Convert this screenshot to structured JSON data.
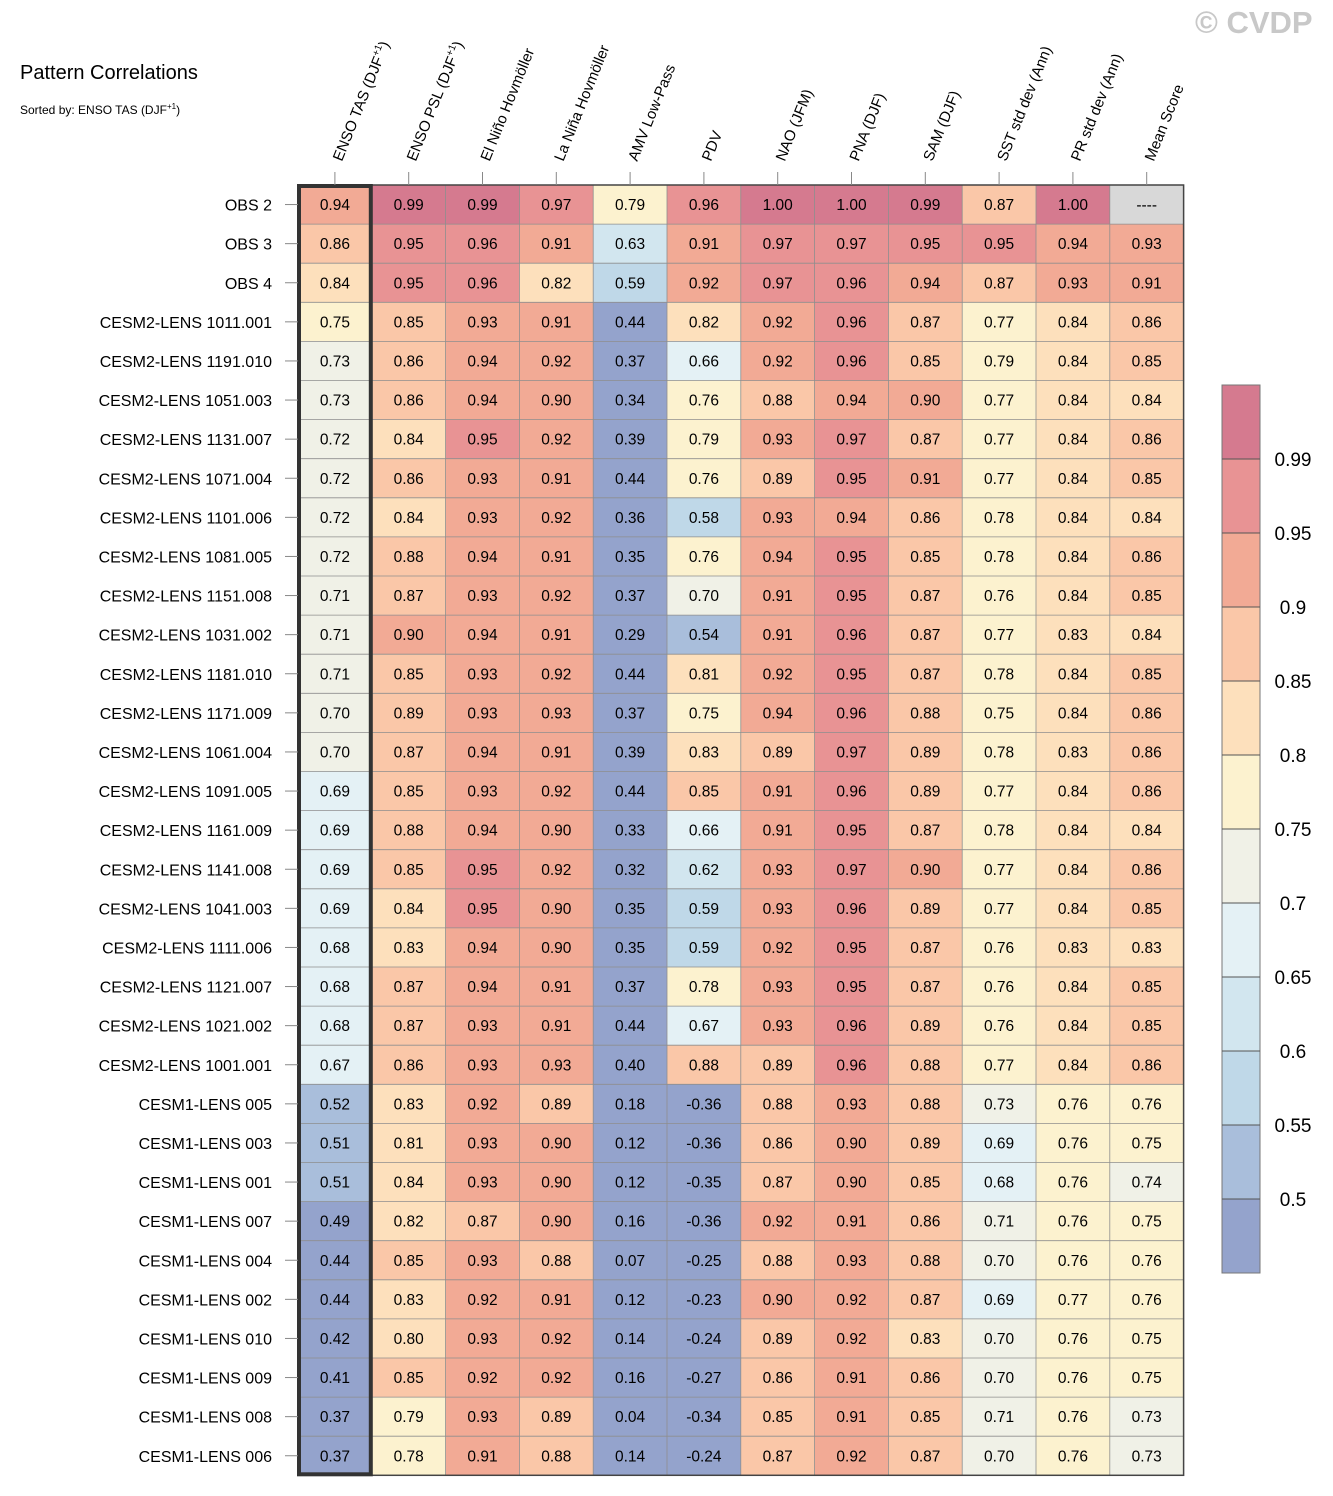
{
  "title": "Pattern Correlations",
  "subtitle_prefix": "Sorted by: ENSO TAS (DJF",
  "subtitle_sup": "+1",
  "subtitle_suffix": ")",
  "watermark": "© CVDP",
  "chart_data": {
    "type": "heatmap",
    "columns": [
      {
        "label": "ENSO TAS (DJF",
        "sup": "+1",
        "suffix": ")"
      },
      {
        "label": "ENSO PSL (DJF",
        "sup": "+1",
        "suffix": ")"
      },
      {
        "label": "El Niño Hovmöller",
        "sup": "",
        "suffix": ""
      },
      {
        "label": "La Niña Hovmöller",
        "sup": "",
        "suffix": ""
      },
      {
        "label": "AMV Low-Pass",
        "sup": "",
        "suffix": ""
      },
      {
        "label": "PDV",
        "sup": "",
        "suffix": ""
      },
      {
        "label": "NAO (JFM)",
        "sup": "",
        "suffix": ""
      },
      {
        "label": "PNA (DJF)",
        "sup": "",
        "suffix": ""
      },
      {
        "label": "SAM (DJF)",
        "sup": "",
        "suffix": ""
      },
      {
        "label": "SST std dev (Ann)",
        "sup": "",
        "suffix": ""
      },
      {
        "label": "PR std dev (Ann)",
        "sup": "",
        "suffix": ""
      },
      {
        "label": "Mean Score",
        "sup": "",
        "suffix": ""
      }
    ],
    "rows": [
      {
        "name": "OBS 2",
        "values": [
          "0.94",
          "0.99",
          "0.99",
          "0.97",
          "0.79",
          "0.96",
          "1.00",
          "1.00",
          "0.99",
          "0.87",
          "1.00",
          "----"
        ]
      },
      {
        "name": "OBS 3",
        "values": [
          "0.86",
          "0.95",
          "0.96",
          "0.91",
          "0.63",
          "0.91",
          "0.97",
          "0.97",
          "0.95",
          "0.95",
          "0.94",
          "0.93"
        ]
      },
      {
        "name": "OBS 4",
        "values": [
          "0.84",
          "0.95",
          "0.96",
          "0.82",
          "0.59",
          "0.92",
          "0.97",
          "0.96",
          "0.94",
          "0.87",
          "0.93",
          "0.91"
        ]
      },
      {
        "name": "CESM2-LENS 1011.001",
        "values": [
          "0.75",
          "0.85",
          "0.93",
          "0.91",
          "0.44",
          "0.82",
          "0.92",
          "0.96",
          "0.87",
          "0.77",
          "0.84",
          "0.86"
        ]
      },
      {
        "name": "CESM2-LENS 1191.010",
        "values": [
          "0.73",
          "0.86",
          "0.94",
          "0.92",
          "0.37",
          "0.66",
          "0.92",
          "0.96",
          "0.85",
          "0.79",
          "0.84",
          "0.85"
        ]
      },
      {
        "name": "CESM2-LENS 1051.003",
        "values": [
          "0.73",
          "0.86",
          "0.94",
          "0.90",
          "0.34",
          "0.76",
          "0.88",
          "0.94",
          "0.90",
          "0.77",
          "0.84",
          "0.84"
        ]
      },
      {
        "name": "CESM2-LENS 1131.007",
        "values": [
          "0.72",
          "0.84",
          "0.95",
          "0.92",
          "0.39",
          "0.79",
          "0.93",
          "0.97",
          "0.87",
          "0.77",
          "0.84",
          "0.86"
        ]
      },
      {
        "name": "CESM2-LENS 1071.004",
        "values": [
          "0.72",
          "0.86",
          "0.93",
          "0.91",
          "0.44",
          "0.76",
          "0.89",
          "0.95",
          "0.91",
          "0.77",
          "0.84",
          "0.85"
        ]
      },
      {
        "name": "CESM2-LENS 1101.006",
        "values": [
          "0.72",
          "0.84",
          "0.93",
          "0.92",
          "0.36",
          "0.58",
          "0.93",
          "0.94",
          "0.86",
          "0.78",
          "0.84",
          "0.84"
        ]
      },
      {
        "name": "CESM2-LENS 1081.005",
        "values": [
          "0.72",
          "0.88",
          "0.94",
          "0.91",
          "0.35",
          "0.76",
          "0.94",
          "0.95",
          "0.85",
          "0.78",
          "0.84",
          "0.86"
        ]
      },
      {
        "name": "CESM2-LENS 1151.008",
        "values": [
          "0.71",
          "0.87",
          "0.93",
          "0.92",
          "0.37",
          "0.70",
          "0.91",
          "0.95",
          "0.87",
          "0.76",
          "0.84",
          "0.85"
        ]
      },
      {
        "name": "CESM2-LENS 1031.002",
        "values": [
          "0.71",
          "0.90",
          "0.94",
          "0.91",
          "0.29",
          "0.54",
          "0.91",
          "0.96",
          "0.87",
          "0.77",
          "0.83",
          "0.84"
        ]
      },
      {
        "name": "CESM2-LENS 1181.010",
        "values": [
          "0.71",
          "0.85",
          "0.93",
          "0.92",
          "0.44",
          "0.81",
          "0.92",
          "0.95",
          "0.87",
          "0.78",
          "0.84",
          "0.85"
        ]
      },
      {
        "name": "CESM2-LENS 1171.009",
        "values": [
          "0.70",
          "0.89",
          "0.93",
          "0.93",
          "0.37",
          "0.75",
          "0.94",
          "0.96",
          "0.88",
          "0.75",
          "0.84",
          "0.86"
        ]
      },
      {
        "name": "CESM2-LENS 1061.004",
        "values": [
          "0.70",
          "0.87",
          "0.94",
          "0.91",
          "0.39",
          "0.83",
          "0.89",
          "0.97",
          "0.89",
          "0.78",
          "0.83",
          "0.86"
        ]
      },
      {
        "name": "CESM2-LENS 1091.005",
        "values": [
          "0.69",
          "0.85",
          "0.93",
          "0.92",
          "0.44",
          "0.85",
          "0.91",
          "0.96",
          "0.89",
          "0.77",
          "0.84",
          "0.86"
        ]
      },
      {
        "name": "CESM2-LENS 1161.009",
        "values": [
          "0.69",
          "0.88",
          "0.94",
          "0.90",
          "0.33",
          "0.66",
          "0.91",
          "0.95",
          "0.87",
          "0.78",
          "0.84",
          "0.84"
        ]
      },
      {
        "name": "CESM2-LENS 1141.008",
        "values": [
          "0.69",
          "0.85",
          "0.95",
          "0.92",
          "0.32",
          "0.62",
          "0.93",
          "0.97",
          "0.90",
          "0.77",
          "0.84",
          "0.86"
        ]
      },
      {
        "name": "CESM2-LENS 1041.003",
        "values": [
          "0.69",
          "0.84",
          "0.95",
          "0.90",
          "0.35",
          "0.59",
          "0.93",
          "0.96",
          "0.89",
          "0.77",
          "0.84",
          "0.85"
        ]
      },
      {
        "name": "CESM2-LENS 1111.006",
        "values": [
          "0.68",
          "0.83",
          "0.94",
          "0.90",
          "0.35",
          "0.59",
          "0.92",
          "0.95",
          "0.87",
          "0.76",
          "0.83",
          "0.83"
        ]
      },
      {
        "name": "CESM2-LENS 1121.007",
        "values": [
          "0.68",
          "0.87",
          "0.94",
          "0.91",
          "0.37",
          "0.78",
          "0.93",
          "0.95",
          "0.87",
          "0.76",
          "0.84",
          "0.85"
        ]
      },
      {
        "name": "CESM2-LENS 1021.002",
        "values": [
          "0.68",
          "0.87",
          "0.93",
          "0.91",
          "0.44",
          "0.67",
          "0.93",
          "0.96",
          "0.89",
          "0.76",
          "0.84",
          "0.85"
        ]
      },
      {
        "name": "CESM2-LENS 1001.001",
        "values": [
          "0.67",
          "0.86",
          "0.93",
          "0.93",
          "0.40",
          "0.88",
          "0.89",
          "0.96",
          "0.88",
          "0.77",
          "0.84",
          "0.86"
        ]
      },
      {
        "name": "CESM1-LENS 005",
        "values": [
          "0.52",
          "0.83",
          "0.92",
          "0.89",
          "0.18",
          "-0.36",
          "0.88",
          "0.93",
          "0.88",
          "0.73",
          "0.76",
          "0.76"
        ]
      },
      {
        "name": "CESM1-LENS 003",
        "values": [
          "0.51",
          "0.81",
          "0.93",
          "0.90",
          "0.12",
          "-0.36",
          "0.86",
          "0.90",
          "0.89",
          "0.69",
          "0.76",
          "0.75"
        ]
      },
      {
        "name": "CESM1-LENS 001",
        "values": [
          "0.51",
          "0.84",
          "0.93",
          "0.90",
          "0.12",
          "-0.35",
          "0.87",
          "0.90",
          "0.85",
          "0.68",
          "0.76",
          "0.74"
        ]
      },
      {
        "name": "CESM1-LENS 007",
        "values": [
          "0.49",
          "0.82",
          "0.87",
          "0.90",
          "0.16",
          "-0.36",
          "0.92",
          "0.91",
          "0.86",
          "0.71",
          "0.76",
          "0.75"
        ]
      },
      {
        "name": "CESM1-LENS 004",
        "values": [
          "0.44",
          "0.85",
          "0.93",
          "0.88",
          "0.07",
          "-0.25",
          "0.88",
          "0.93",
          "0.88",
          "0.70",
          "0.76",
          "0.76"
        ]
      },
      {
        "name": "CESM1-LENS 002",
        "values": [
          "0.44",
          "0.83",
          "0.92",
          "0.91",
          "0.12",
          "-0.23",
          "0.90",
          "0.92",
          "0.87",
          "0.69",
          "0.77",
          "0.76"
        ]
      },
      {
        "name": "CESM1-LENS 010",
        "values": [
          "0.42",
          "0.80",
          "0.93",
          "0.92",
          "0.14",
          "-0.24",
          "0.89",
          "0.92",
          "0.83",
          "0.70",
          "0.76",
          "0.75"
        ]
      },
      {
        "name": "CESM1-LENS 009",
        "values": [
          "0.41",
          "0.85",
          "0.92",
          "0.92",
          "0.16",
          "-0.27",
          "0.86",
          "0.91",
          "0.86",
          "0.70",
          "0.76",
          "0.75"
        ]
      },
      {
        "name": "CESM1-LENS 008",
        "values": [
          "0.37",
          "0.79",
          "0.93",
          "0.89",
          "0.04",
          "-0.34",
          "0.85",
          "0.91",
          "0.85",
          "0.71",
          "0.76",
          "0.73"
        ]
      },
      {
        "name": "CESM1-LENS 006",
        "values": [
          "0.37",
          "0.78",
          "0.91",
          "0.88",
          "0.14",
          "-0.24",
          "0.87",
          "0.92",
          "0.87",
          "0.70",
          "0.76",
          "0.73"
        ]
      }
    ],
    "missing_value": "----",
    "sorted_column": 0,
    "colorbar": {
      "levels": [
        0.5,
        0.55,
        0.6,
        0.65,
        0.7,
        0.75,
        0.8,
        0.85,
        0.9,
        0.95,
        0.99
      ],
      "tick_labels": [
        "0.5",
        "0.55",
        "0.6",
        "0.65",
        "0.7",
        "0.75",
        "0.8",
        "0.85",
        "0.9",
        "0.95",
        "0.99"
      ],
      "colors": [
        "#94a3cc",
        "#a9bedb",
        "#bfd8e8",
        "#d2e6ef",
        "#e4f1f5",
        "#f0f1e7",
        "#fcf2cf",
        "#fde0bc",
        "#fac7a8",
        "#f2aa95",
        "#e89394",
        "#d57a8f"
      ],
      "missing_color": "#d8d8d8"
    }
  }
}
